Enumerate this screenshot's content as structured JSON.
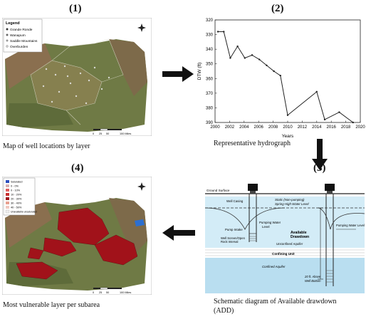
{
  "panels": {
    "p1": {
      "number": "(1)",
      "caption": "Map of well locations by layer",
      "legend_title": "Legend",
      "legend_items": [
        "Grande Ronde",
        "Wanapum",
        "Saddle Mountains",
        "Overburden"
      ],
      "scale_labels": [
        "0",
        "25",
        "50",
        "100 Miles"
      ]
    },
    "p2": {
      "number": "(2)",
      "caption": "Representative hydrograph"
    },
    "p3": {
      "number": "(3)",
      "caption_line1": "Schematic diagram of Available drawdown",
      "caption_line2": "(ADD)",
      "labels": {
        "ground_surface": "Ground Surface",
        "static_level_1": "Static (Non-pumping)",
        "static_level_2": "Spring High Water Level",
        "well_casing": "Well Casing",
        "pumping_water_level_left": "Pumping Water",
        "pumping_water_level_left2": "Level",
        "pump_intake": "Pump Intake",
        "well_screen_1": "Well Screen/Open",
        "well_screen_2": "Rock Interval",
        "unconfined": "Unconfined Aquifer",
        "available_1": "Available",
        "available_2": "Drawdown",
        "confining": "Confining Unit",
        "confined": "Confined Aquifer",
        "pumping_water_level_right": "Pumping Water Level",
        "above_1": "20 ft. Above",
        "above_2": "Well Bottom"
      }
    },
    "p4": {
      "number": "(4)",
      "caption": "Most vulnerable layer per subarea",
      "legend_items": [
        "Saturated",
        "0 - 0%",
        "0 - 10%",
        "10 - 20%",
        "20 - 30%",
        "30 - 40%",
        "40 - 50%",
        "Unavailable unsaturated"
      ],
      "scale_labels": [
        "0",
        "25",
        "50",
        "100 Miles"
      ]
    }
  },
  "colors": {
    "map_green": "#6f7a45",
    "map_brown": "#8a6f4f",
    "vulnerable_red": "#a1121a",
    "water_blue": "#b9def0"
  },
  "chart_data": {
    "type": "line",
    "title": "",
    "xlabel": "Years",
    "ylabel": "DTW (ft)",
    "xlim": [
      2000,
      2020
    ],
    "ylim": [
      390,
      320
    ],
    "y_inverted": true,
    "x_ticks": [
      2000,
      2002,
      2004,
      2006,
      2008,
      2010,
      2012,
      2014,
      2016,
      2018,
      2020
    ],
    "y_ticks": [
      320,
      330,
      340,
      350,
      360,
      370,
      380,
      390
    ],
    "series": [
      {
        "x": [
          2000.4,
          2001.2,
          2002.1,
          2003.1,
          2004.1,
          2005.1,
          2006.1,
          2007.1,
          2008.1,
          2009.0,
          2010.0,
          2014.0,
          2015.1,
          2017.1,
          2019.0
        ],
        "y": [
          328,
          328,
          346,
          338,
          346,
          344,
          347,
          351,
          355,
          358,
          385,
          369,
          388,
          383,
          390
        ]
      }
    ]
  }
}
